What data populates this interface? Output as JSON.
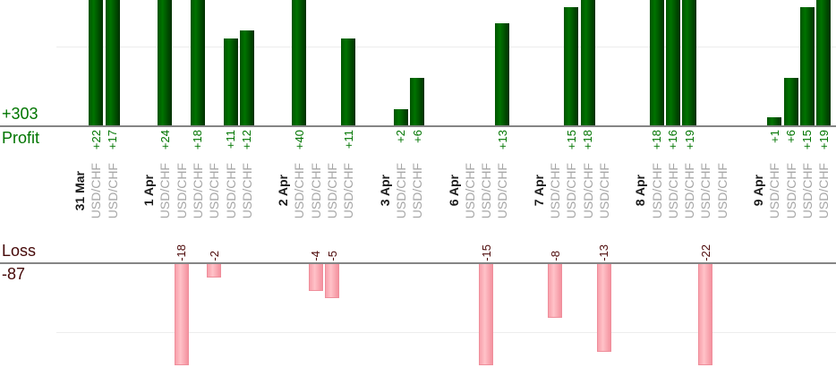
{
  "summary": {
    "profit_total_label": "+303",
    "profit_axis_title": "Profit",
    "loss_axis_title": "Loss",
    "loss_total_label": "-87"
  },
  "colors": {
    "profit_text": "#007500",
    "loss_text": "#4d0a0a",
    "loss_title_text": "#450808",
    "date_text": "#1a1a1a",
    "symbol_text": "#a6a6a6",
    "axis_line": "#858585",
    "gridline": "#ededed",
    "profit_bar_gradient": [
      "#005400",
      "#007300",
      "#002f00"
    ],
    "loss_bar_gradient": [
      "#f8a0ab",
      "#ffc2c8",
      "#f4929f"
    ],
    "loss_bar_border": "#ef8e9b"
  },
  "chart_data": {
    "type": "bar",
    "title": "",
    "description_visible": "Paired profit/loss bar chart of trades per day; green bars above Profit axis, pink bars below Loss axis; per-trade instrument labels rotated vertically",
    "profit_axis": {
      "title": "Profit",
      "total_label": "+303",
      "total": 303,
      "gridline_value": 10,
      "visible_value_range": [
        0,
        16
      ],
      "bars_clipped_above": 16
    },
    "loss_axis": {
      "title": "Loss",
      "total_label": "-87",
      "total": -87,
      "gridline_value": -10,
      "visible_value_range": [
        0,
        -15
      ],
      "bars_clipped_below": -16
    },
    "legend": null,
    "grid": "horizontal-faint",
    "groups": [
      {
        "date": "31 Mar",
        "trades": [
          {
            "symbol": "USD/CHF",
            "value": 22,
            "label": "+22"
          },
          {
            "symbol": "USD/CHF",
            "value": 17,
            "label": "+17"
          }
        ]
      },
      {
        "date": "1 Apr",
        "trades": [
          {
            "symbol": "USD/CHF",
            "value": 24,
            "label": "+24"
          },
          {
            "symbol": "USD/CHF",
            "value": -18,
            "label": "-18"
          },
          {
            "symbol": "USD/CHF",
            "value": 18,
            "label": "+18"
          },
          {
            "symbol": "USD/CHF",
            "value": -2,
            "label": "-2"
          },
          {
            "symbol": "USD/CHF",
            "value": 11,
            "label": "+11"
          },
          {
            "symbol": "USD/CHF",
            "value": 12,
            "label": "+12"
          }
        ]
      },
      {
        "date": "2 Apr",
        "trades": [
          {
            "symbol": "USD/CHF",
            "value": 40,
            "label": "+40"
          },
          {
            "symbol": "USD/CHF",
            "value": -4,
            "label": "-4"
          },
          {
            "symbol": "USD/CHF",
            "value": -5,
            "label": "-5"
          },
          {
            "symbol": "USD/CHF",
            "value": 11,
            "label": "+11"
          }
        ]
      },
      {
        "date": "3 Apr",
        "trades": [
          {
            "symbol": "USD/CHF",
            "value": 2,
            "label": "+2"
          },
          {
            "symbol": "USD/CHF",
            "value": 6,
            "label": "+6"
          }
        ]
      },
      {
        "date": "6 Apr",
        "trades": [
          {
            "symbol": "USD/CHF",
            "value": 0,
            "label": ""
          },
          {
            "symbol": "USD/CHF",
            "value": -15,
            "label": "-15"
          },
          {
            "symbol": "USD/CHF",
            "value": 13,
            "label": "+13"
          }
        ]
      },
      {
        "date": "7 Apr",
        "trades": [
          {
            "symbol": "USD/CHF",
            "value": -8,
            "label": "-8"
          },
          {
            "symbol": "USD/CHF",
            "value": 15,
            "label": "+15"
          },
          {
            "symbol": "USD/CHF",
            "value": 18,
            "label": "+18"
          },
          {
            "symbol": "USD/CHF",
            "value": -13,
            "label": "-13"
          }
        ]
      },
      {
        "date": "8 Apr",
        "trades": [
          {
            "symbol": "USD/CHF",
            "value": 18,
            "label": "+18"
          },
          {
            "symbol": "USD/CHF",
            "value": 16,
            "label": "+16"
          },
          {
            "symbol": "USD/CHF",
            "value": 19,
            "label": "+19"
          },
          {
            "symbol": "USD/CHF",
            "value": -22,
            "label": "-22"
          },
          {
            "symbol": "USD/CHF",
            "value": 0,
            "label": ""
          }
        ]
      },
      {
        "date": "9 Apr",
        "trades": [
          {
            "symbol": "USD/CHF",
            "value": 1,
            "label": "+1"
          },
          {
            "symbol": "USD/CHF",
            "value": 6,
            "label": "+6"
          },
          {
            "symbol": "USD/CHF",
            "value": 15,
            "label": "+15"
          },
          {
            "symbol": "USD/CHF",
            "value": 19,
            "label": "+19"
          }
        ]
      }
    ]
  }
}
